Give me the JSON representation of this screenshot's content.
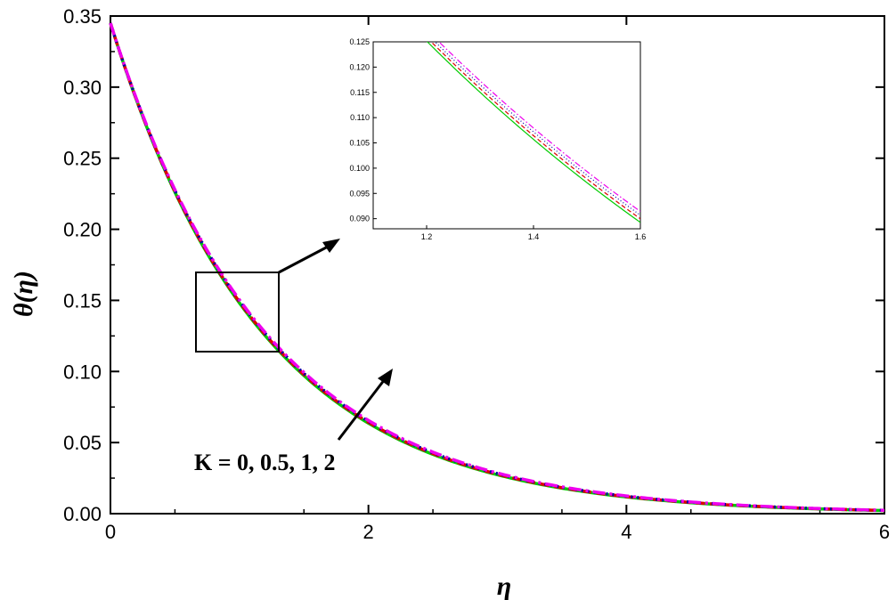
{
  "chart_data": {
    "type": "line",
    "xlabel": "η",
    "ylabel": "θ(η)",
    "xlim": [
      0,
      6
    ],
    "ylim": [
      0,
      0.35
    ],
    "x_ticks": [
      "0",
      "2",
      "4",
      "6"
    ],
    "y_ticks": [
      "0.00",
      "0.05",
      "0.10",
      "0.15",
      "0.20",
      "0.25",
      "0.30",
      "0.35"
    ],
    "annotation": "K = 0, 0.5, 1, 2",
    "series": [
      {
        "color": "#00cc00",
        "style": "solid",
        "theta0": 0.345,
        "decay": 0.845
      },
      {
        "color": "#dd0000",
        "style": "dash",
        "theta0": 0.345,
        "decay": 0.84
      },
      {
        "color": "#0000aa",
        "style": "dot",
        "theta0": 0.345,
        "decay": 0.835
      },
      {
        "color": "#ee00ee",
        "style": "dashdot",
        "theta0": 0.345,
        "decay": 0.83
      }
    ],
    "inset": {
      "xlim": [
        1.1,
        1.6
      ],
      "ylim": [
        0.088,
        0.125
      ],
      "x_ticks": [
        "1.2",
        "1.4",
        "1.6"
      ],
      "y_ticks": [
        "0.090",
        "0.095",
        "0.100",
        "0.105",
        "0.110",
        "0.115",
        "0.120",
        "0.125"
      ]
    }
  }
}
